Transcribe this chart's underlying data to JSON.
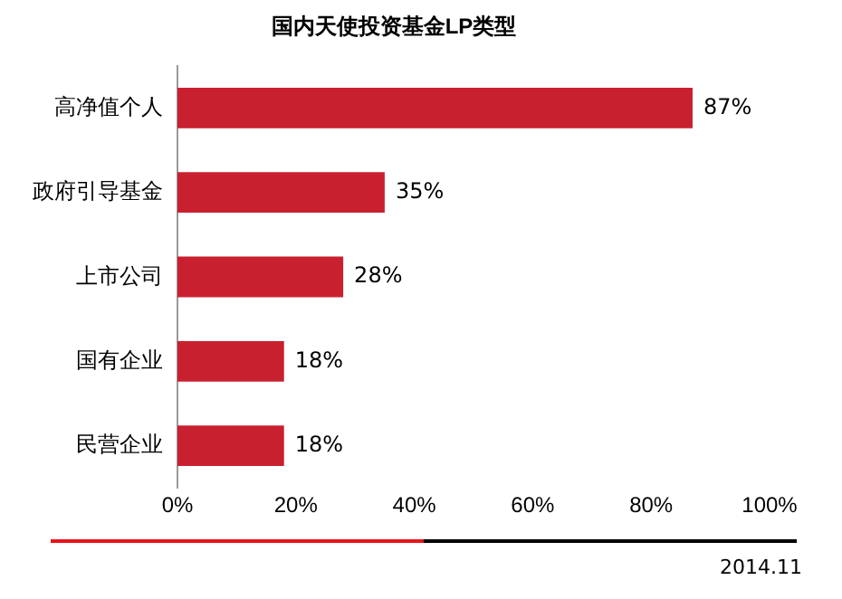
{
  "chart_data": {
    "type": "bar",
    "orientation": "horizontal",
    "title": "国内天使投资基金LP类型",
    "categories": [
      "高净值个人",
      "政府引导基金",
      "上市公司",
      "国有企业",
      "民营企业"
    ],
    "values": [
      87,
      35,
      28,
      18,
      18
    ],
    "color": "#c9202f",
    "value_labels": [
      "87%",
      "35%",
      "28%",
      "18%",
      "18%"
    ],
    "xlim": [
      0,
      100
    ],
    "xticks": [
      {
        "value": 0,
        "label": "0%"
      },
      {
        "value": 20,
        "label": "20%"
      },
      {
        "value": 40,
        "label": "40%"
      },
      {
        "value": 60,
        "label": "60%"
      },
      {
        "value": 80,
        "label": "80%"
      },
      {
        "value": 100,
        "label": "100%"
      }
    ],
    "grid": false,
    "legend": false,
    "annotations": [
      "2014.11"
    ]
  }
}
